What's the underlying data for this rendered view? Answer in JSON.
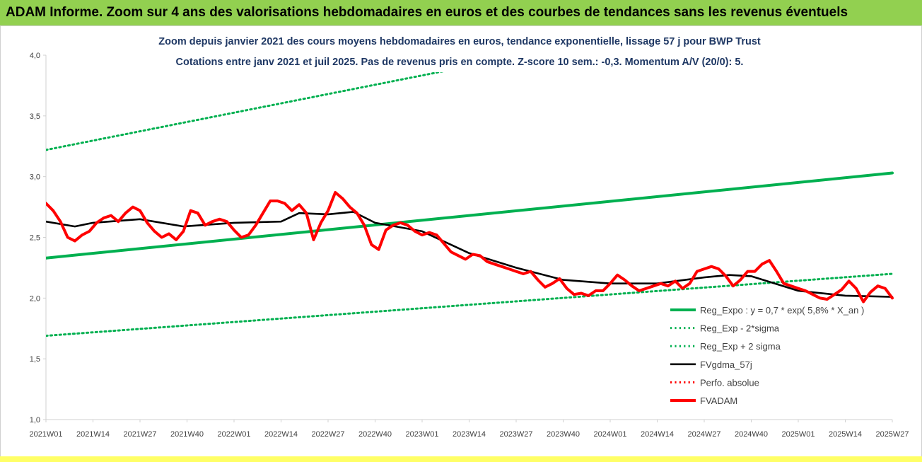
{
  "header": {
    "title": "ADAM Informe. Zoom sur 4 ans des valorisations hebdomadaires en euros et des courbes de tendances sans les revenus éventuels"
  },
  "colors": {
    "banner": "#92d050",
    "trend": "#00b050",
    "sigma": "#00b050",
    "fvgdma": "#000000",
    "fvadam": "#ff0000",
    "perfo": "#ff0000",
    "title_text": "#1f3864"
  },
  "chart_data": {
    "type": "line",
    "title_lines": [
      "Zoom depuis janvier 2021 des cours moyens hebdomadaires en euros, tendance exponentielle, lissage 57 j pour BWP Trust",
      "Cotations entre janv 2021 et juil 2025. Pas de revenus pris en compte. Z-score 10 sem.: -0,3. Momentum A/V (20/0): 5."
    ],
    "ylim": [
      1.0,
      4.0
    ],
    "y_ticks": [
      "1,0",
      "1,5",
      "2,0",
      "2,5",
      "3,0",
      "3,5",
      "4,0"
    ],
    "y_tick_values": [
      1.0,
      1.5,
      2.0,
      2.5,
      3.0,
      3.5,
      4.0
    ],
    "x_ticks": [
      "2021W01",
      "2021W14",
      "2021W27",
      "2021W40",
      "2022W01",
      "2022W14",
      "2022W27",
      "2022W40",
      "2023W01",
      "2023W14",
      "2023W27",
      "2023W40",
      "2024W01",
      "2024W14",
      "2024W27",
      "2024W40",
      "2025W01",
      "2025W14",
      "2025W27"
    ],
    "grid": false,
    "legend_position": "bottom-right",
    "series": [
      {
        "name": "Reg_Expo : y = 0,7 * exp( 5,8% *   X_an )",
        "style": "solid-thick",
        "color": "#00b050",
        "x": [
          0,
          234
        ],
        "y": [
          2.33,
          3.03
        ]
      },
      {
        "name": "Reg_Exp - 2*sigma",
        "style": "dotted",
        "color": "#00b050",
        "x": [
          0,
          234
        ],
        "y": [
          1.69,
          2.2
        ]
      },
      {
        "name": "Reg_Exp + 2 sigma",
        "style": "dotted",
        "color": "#00b050",
        "x": [
          0,
          234
        ],
        "y": [
          3.22,
          4.6
        ]
      },
      {
        "name": "FVgdma_57j",
        "style": "solid",
        "color": "#000000",
        "x": [
          0,
          8,
          13,
          26,
          38,
          52,
          65,
          70,
          78,
          85,
          91,
          104,
          117,
          130,
          143,
          156,
          169,
          182,
          189,
          195,
          208,
          221,
          234
        ],
        "y": [
          2.63,
          2.59,
          2.62,
          2.65,
          2.59,
          2.62,
          2.63,
          2.7,
          2.69,
          2.71,
          2.62,
          2.55,
          2.37,
          2.25,
          2.15,
          2.12,
          2.12,
          2.17,
          2.19,
          2.18,
          2.06,
          2.02,
          2.01
        ]
      },
      {
        "name": "Perfo. absolue",
        "style": "dotted",
        "color": "#ff0000",
        "x": [],
        "y": []
      },
      {
        "name": "FVADAM",
        "style": "solid-thick",
        "color": "#ff0000",
        "x": [
          0,
          2,
          4,
          6,
          8,
          10,
          12,
          14,
          16,
          18,
          20,
          22,
          24,
          26,
          28,
          30,
          32,
          34,
          36,
          38,
          40,
          42,
          44,
          46,
          48,
          50,
          52,
          54,
          56,
          58,
          60,
          62,
          64,
          66,
          68,
          70,
          72,
          74,
          76,
          78,
          80,
          82,
          84,
          86,
          88,
          90,
          92,
          94,
          96,
          98,
          100,
          102,
          104,
          106,
          108,
          110,
          112,
          114,
          116,
          118,
          120,
          122,
          124,
          126,
          128,
          130,
          132,
          134,
          136,
          138,
          140,
          142,
          144,
          146,
          148,
          150,
          152,
          154,
          156,
          158,
          160,
          162,
          164,
          166,
          168,
          170,
          172,
          174,
          176,
          178,
          180,
          182,
          184,
          186,
          188,
          190,
          192,
          194,
          196,
          198,
          200,
          202,
          204,
          206,
          208,
          210,
          212,
          214,
          216,
          218,
          220,
          222,
          224,
          226,
          228,
          230,
          232,
          234
        ],
        "y": [
          2.78,
          2.72,
          2.63,
          2.5,
          2.47,
          2.52,
          2.55,
          2.62,
          2.66,
          2.68,
          2.63,
          2.7,
          2.75,
          2.72,
          2.62,
          2.55,
          2.5,
          2.53,
          2.48,
          2.55,
          2.72,
          2.7,
          2.6,
          2.63,
          2.65,
          2.63,
          2.56,
          2.5,
          2.52,
          2.6,
          2.7,
          2.8,
          2.8,
          2.78,
          2.72,
          2.77,
          2.7,
          2.48,
          2.62,
          2.72,
          2.87,
          2.82,
          2.75,
          2.7,
          2.6,
          2.44,
          2.4,
          2.56,
          2.6,
          2.62,
          2.6,
          2.55,
          2.52,
          2.54,
          2.52,
          2.45,
          2.38,
          2.35,
          2.32,
          2.36,
          2.35,
          2.3,
          2.28,
          2.26,
          2.24,
          2.22,
          2.2,
          2.22,
          2.15,
          2.09,
          2.12,
          2.16,
          2.08,
          2.03,
          2.04,
          2.02,
          2.06,
          2.06,
          2.12,
          2.19,
          2.15,
          2.1,
          2.06,
          2.08,
          2.1,
          2.12,
          2.1,
          2.14,
          2.08,
          2.12,
          2.22,
          2.24,
          2.26,
          2.24,
          2.18,
          2.1,
          2.15,
          2.22,
          2.22,
          2.28,
          2.31,
          2.22,
          2.12,
          2.1,
          2.08,
          2.06,
          2.03,
          2.0,
          1.99,
          2.03,
          2.07,
          2.14,
          2.08,
          1.97,
          2.05,
          2.1,
          2.08,
          2.0
        ]
      }
    ]
  }
}
